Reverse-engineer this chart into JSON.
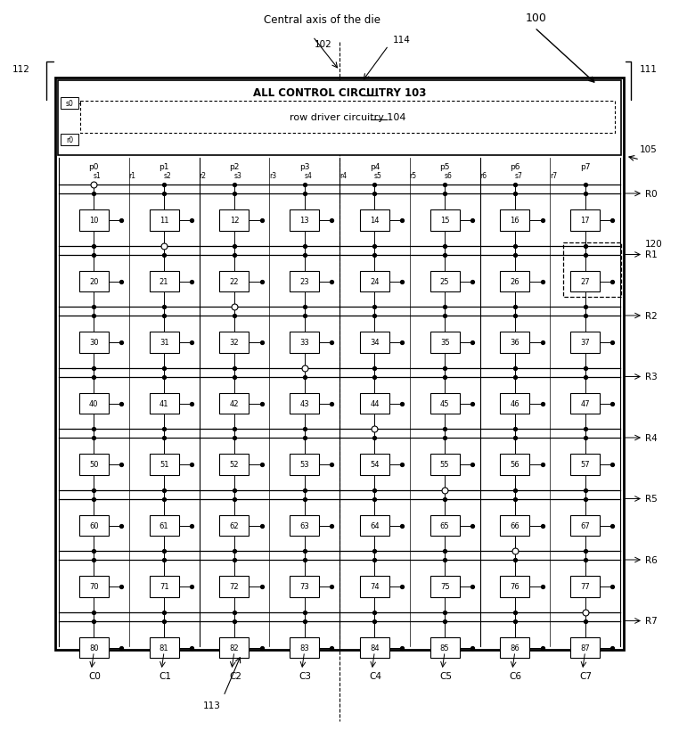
{
  "fig_width": 7.62,
  "fig_height": 8.2,
  "bg_color": "#ffffff",
  "num_rows": 8,
  "num_cols": 8,
  "row_labels": [
    "R0",
    "R1",
    "R2",
    "R3",
    "R4",
    "R5",
    "R6",
    "R7"
  ],
  "col_labels": [
    "C0",
    "C1",
    "C2",
    "C3",
    "C4",
    "C5",
    "C6",
    "C7"
  ],
  "p_labels": [
    "p0",
    "p1",
    "p2",
    "p3",
    "p4",
    "p5",
    "p6",
    "p7"
  ],
  "sr_labels": [
    "s1",
    "r1",
    "s2",
    "r2",
    "s3",
    "r3",
    "s4",
    "r4",
    "s5",
    "r5",
    "s6",
    "r6",
    "s7",
    "r7"
  ],
  "cell_labels": [
    [
      "10",
      "11",
      "12",
      "13",
      "14",
      "15",
      "16",
      "17"
    ],
    [
      "20",
      "21",
      "22",
      "23",
      "24",
      "25",
      "26",
      "27"
    ],
    [
      "30",
      "31",
      "32",
      "33",
      "34",
      "35",
      "36",
      "37"
    ],
    [
      "40",
      "41",
      "42",
      "43",
      "44",
      "45",
      "46",
      "47"
    ],
    [
      "50",
      "51",
      "52",
      "53",
      "54",
      "55",
      "56",
      "57"
    ],
    [
      "60",
      "61",
      "62",
      "63",
      "64",
      "65",
      "66",
      "67"
    ],
    [
      "70",
      "71",
      "72",
      "73",
      "74",
      "75",
      "76",
      "77"
    ],
    [
      "80",
      "81",
      "82",
      "83",
      "84",
      "85",
      "86",
      "87"
    ]
  ],
  "ref_number": "100",
  "label_102": "102",
  "label_103": "103",
  "label_104": "104",
  "label_105": "105",
  "label_111": "111",
  "label_112": "112",
  "label_113": "113",
  "label_114": "114",
  "label_120": "120"
}
